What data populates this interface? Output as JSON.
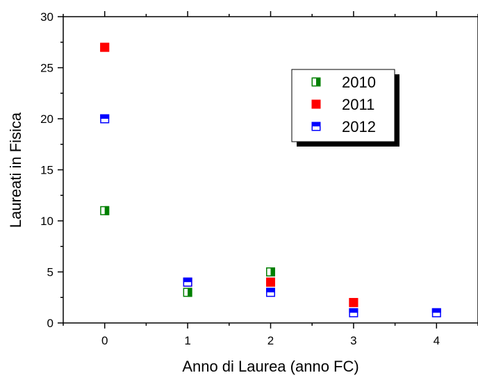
{
  "chart_data": {
    "type": "scatter",
    "xlabel": "Anno di Laurea (anno FC)",
    "ylabel": "Laureati in Fisica",
    "xlim": [
      -0.5,
      4.5
    ],
    "ylim": [
      0,
      30
    ],
    "x_ticks": [
      "0",
      "1",
      "2",
      "3",
      "4"
    ],
    "y_ticks": [
      "0",
      "5",
      "10",
      "15",
      "20",
      "25",
      "30"
    ],
    "grid": false,
    "legend_position": "top-right",
    "series": [
      {
        "name": "2010",
        "color": "#008000",
        "marker": "square-half-left",
        "points": [
          [
            0,
            11
          ],
          [
            1,
            3
          ],
          [
            2,
            5
          ]
        ]
      },
      {
        "name": "2011",
        "color": "#ff0000",
        "marker": "square-filled",
        "points": [
          [
            0,
            27
          ],
          [
            1,
            4
          ],
          [
            2,
            4
          ],
          [
            3,
            2
          ]
        ]
      },
      {
        "name": "2012",
        "color": "#0000ff",
        "marker": "square-half-top",
        "points": [
          [
            0,
            20
          ],
          [
            1,
            4
          ],
          [
            2,
            3
          ],
          [
            3,
            1
          ],
          [
            4,
            1
          ]
        ]
      }
    ]
  }
}
